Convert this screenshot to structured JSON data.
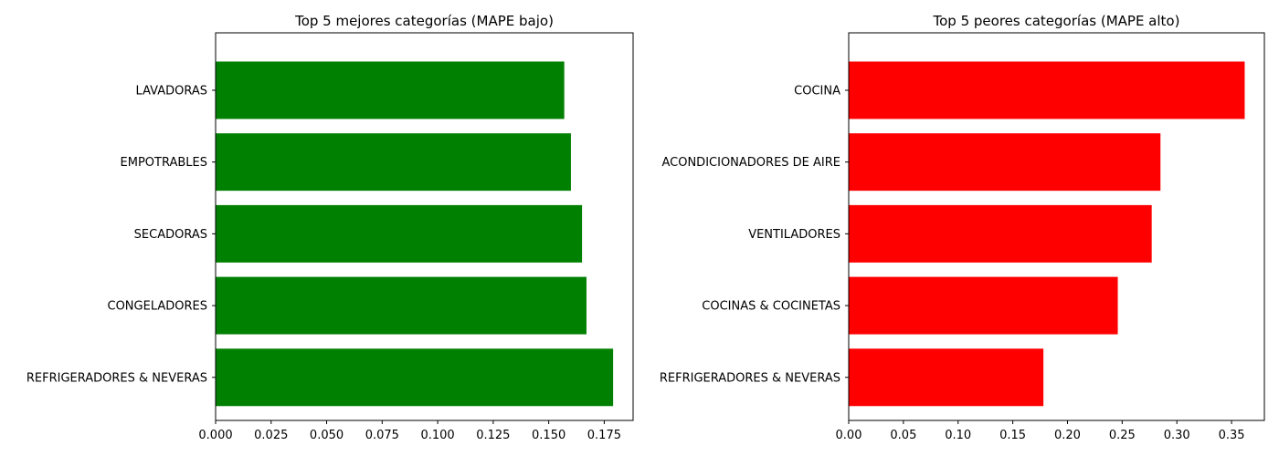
{
  "chart_data": [
    {
      "type": "bar",
      "orientation": "horizontal",
      "title": "Top 5 mejores categorías (MAPE bajo)",
      "xlabel": "",
      "ylabel": "",
      "color": "#008000",
      "categories": [
        "LAVADORAS",
        "EMPOTRABLES",
        "SECADORAS",
        "CONGELADORES",
        "REFRIGERADORES & NEVERAS"
      ],
      "values": [
        0.157,
        0.16,
        0.165,
        0.167,
        0.179
      ],
      "xlim": [
        0,
        0.188
      ],
      "xticks": [
        "0.000",
        "0.025",
        "0.050",
        "0.075",
        "0.100",
        "0.125",
        "0.150",
        "0.175"
      ],
      "grid": false
    },
    {
      "type": "bar",
      "orientation": "horizontal",
      "title": "Top 5 peores categorías (MAPE alto)",
      "xlabel": "",
      "ylabel": "",
      "color": "#ff0000",
      "categories": [
        "COCINA",
        "ACONDICIONADORES DE AIRE",
        "VENTILADORES",
        "COCINAS & COCINETAS",
        "REFRIGERADORES & NEVERAS"
      ],
      "values": [
        0.362,
        0.285,
        0.277,
        0.246,
        0.178
      ],
      "xlim": [
        0,
        0.38
      ],
      "xticks": [
        "0.00",
        "0.05",
        "0.10",
        "0.15",
        "0.20",
        "0.25",
        "0.30",
        "0.35"
      ],
      "grid": false
    }
  ]
}
